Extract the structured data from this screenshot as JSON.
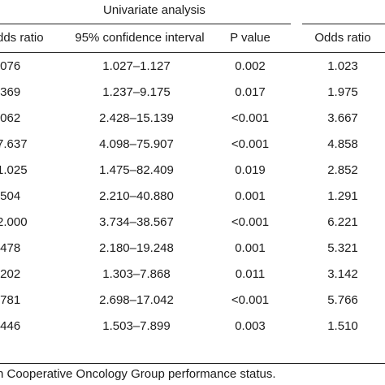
{
  "table": {
    "group_header": "Univariate analysis",
    "columns": {
      "odds_ratio_1": "dds ratio",
      "ci": "95% confidence interval",
      "p_value": "P value",
      "odds_ratio_2": "Odds ratio"
    },
    "rows": [
      {
        "or1": ".076",
        "ci": "1.027–1.127",
        "p": "0.002",
        "or2": "1.023"
      },
      {
        "or1": ".369",
        "ci": "1.237–9.175",
        "p": "0.017",
        "or2": "1.975"
      },
      {
        "or1": ".062",
        "ci": "2.428–15.139",
        "p": "<0.001",
        "or2": "3.667"
      },
      {
        "or1": "7.637",
        "ci": "4.098–75.907",
        "p": "<0.001",
        "or2": "4.858"
      },
      {
        "or1": "1.025",
        "ci": "1.475–82.409",
        "p": "0.019",
        "or2": "2.852"
      },
      {
        "or1": ".504",
        "ci": "2.210–40.880",
        "p": "0.001",
        "or2": "1.291"
      },
      {
        "or1": "2.000",
        "ci": "3.734–38.567",
        "p": "<0.001",
        "or2": "6.221"
      },
      {
        "or1": ".478",
        "ci": "2.180–19.248",
        "p": "0.001",
        "or2": "5.321"
      },
      {
        "or1": ".202",
        "ci": "1.303–7.868",
        "p": "0.011",
        "or2": "3.142"
      },
      {
        "or1": ".781",
        "ci": "2.698–17.042",
        "p": "<0.001",
        "or2": "5.766"
      },
      {
        "or1": ".446",
        "ci": "1.503–7.899",
        "p": "0.003",
        "or2": "1.510"
      }
    ]
  },
  "footnote": "n Cooperative Oncology Group performance status."
}
